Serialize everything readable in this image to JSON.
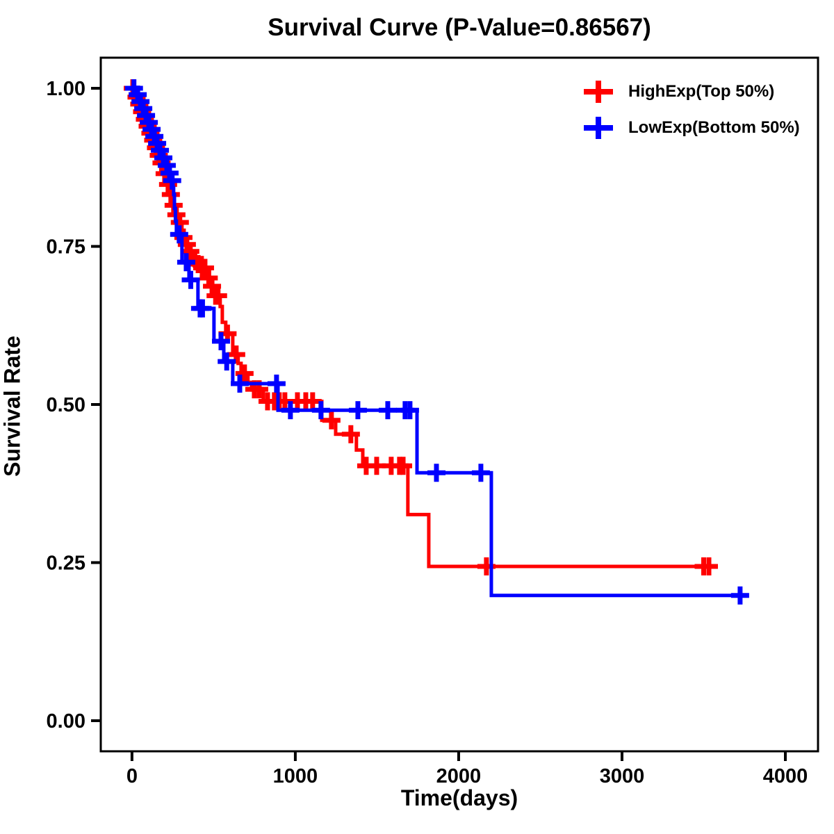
{
  "title": "Survival Curve (P-Value=0.86567)",
  "axes": {
    "x": {
      "label": "Time(days)",
      "ticks": [
        {
          "v": 0,
          "label": "0"
        },
        {
          "v": 1000,
          "label": "1000"
        },
        {
          "v": 2000,
          "label": "2000"
        },
        {
          "v": 3000,
          "label": "3000"
        },
        {
          "v": 4000,
          "label": "4000"
        }
      ]
    },
    "y": {
      "label": "Survival Rate",
      "ticks": [
        {
          "v": 0.0,
          "label": "0.00"
        },
        {
          "v": 0.25,
          "label": "0.25"
        },
        {
          "v": 0.5,
          "label": "0.50"
        },
        {
          "v": 0.75,
          "label": "0.75"
        },
        {
          "v": 1.0,
          "label": "1.00"
        }
      ]
    }
  },
  "legend": [
    {
      "label": "HighExp(Top 50%)",
      "color": "#ff0000",
      "marker": "plus-icon"
    },
    {
      "label": "LowExp(Bottom 50%)",
      "color": "#0000ff",
      "marker": "plus-icon"
    }
  ],
  "chart_data": {
    "type": "line",
    "subtype": "kaplan-meier-step",
    "title": "Survival Curve (P-Value=0.86567)",
    "p_value": 0.86567,
    "xlabel": "Time(days)",
    "ylabel": "Survival Rate",
    "xlim": [
      -191,
      4200
    ],
    "ylim": [
      -0.0484,
      1.0484
    ],
    "grid": false,
    "legend_position": "top-right-inside",
    "series": [
      {
        "name": "HighExp(Top 50%)",
        "color": "#ff0000",
        "end_time": 3560,
        "steps": [
          [
            0,
            1.0
          ],
          [
            21,
            0.986
          ],
          [
            38,
            0.975
          ],
          [
            55,
            0.963
          ],
          [
            72,
            0.951
          ],
          [
            89,
            0.94
          ],
          [
            106,
            0.929
          ],
          [
            123,
            0.918
          ],
          [
            140,
            0.906
          ],
          [
            157,
            0.894
          ],
          [
            174,
            0.882
          ],
          [
            191,
            0.865
          ],
          [
            213,
            0.848
          ],
          [
            230,
            0.832
          ],
          [
            247,
            0.815
          ],
          [
            264,
            0.8
          ],
          [
            281,
            0.788
          ],
          [
            306,
            0.764
          ],
          [
            328,
            0.753
          ],
          [
            349,
            0.742
          ],
          [
            370,
            0.731
          ],
          [
            396,
            0.722
          ],
          [
            417,
            0.716
          ],
          [
            460,
            0.7
          ],
          [
            481,
            0.687
          ],
          [
            502,
            0.672
          ],
          [
            540,
            0.655
          ],
          [
            553,
            0.63
          ],
          [
            574,
            0.612
          ],
          [
            617,
            0.579
          ],
          [
            650,
            0.565
          ],
          [
            668,
            0.549
          ],
          [
            710,
            0.535
          ],
          [
            732,
            0.524
          ],
          [
            804,
            0.505
          ],
          [
            1162,
            0.475
          ],
          [
            1247,
            0.453
          ],
          [
            1374,
            0.428
          ],
          [
            1413,
            0.403
          ],
          [
            1689,
            0.326
          ],
          [
            1817,
            0.244
          ]
        ],
        "censors": [
          [
            5,
            1.0
          ],
          [
            28,
            0.986
          ],
          [
            45,
            0.975
          ],
          [
            62,
            0.963
          ],
          [
            79,
            0.951
          ],
          [
            96,
            0.94
          ],
          [
            113,
            0.929
          ],
          [
            130,
            0.918
          ],
          [
            147,
            0.906
          ],
          [
            164,
            0.894
          ],
          [
            181,
            0.882
          ],
          [
            200,
            0.865
          ],
          [
            221,
            0.848
          ],
          [
            238,
            0.832
          ],
          [
            255,
            0.815
          ],
          [
            272,
            0.8
          ],
          [
            293,
            0.788
          ],
          [
            315,
            0.764
          ],
          [
            336,
            0.753
          ],
          [
            357,
            0.742
          ],
          [
            385,
            0.731
          ],
          [
            405,
            0.722
          ],
          [
            430,
            0.716
          ],
          [
            447,
            0.716
          ],
          [
            470,
            0.7
          ],
          [
            490,
            0.687
          ],
          [
            512,
            0.672
          ],
          [
            527,
            0.672
          ],
          [
            585,
            0.612
          ],
          [
            638,
            0.579
          ],
          [
            689,
            0.549
          ],
          [
            749,
            0.524
          ],
          [
            779,
            0.524
          ],
          [
            830,
            0.505
          ],
          [
            872,
            0.505
          ],
          [
            902,
            0.505
          ],
          [
            936,
            0.505
          ],
          [
            1013,
            0.505
          ],
          [
            1064,
            0.505
          ],
          [
            1106,
            0.505
          ],
          [
            1221,
            0.475
          ],
          [
            1340,
            0.453
          ],
          [
            1434,
            0.403
          ],
          [
            1498,
            0.403
          ],
          [
            1587,
            0.403
          ],
          [
            1638,
            0.403
          ],
          [
            1660,
            0.403
          ],
          [
            2170,
            0.244
          ],
          [
            3500,
            0.244
          ],
          [
            3532,
            0.244
          ]
        ]
      },
      {
        "name": "LowExp(Bottom 50%)",
        "color": "#0000ff",
        "end_time": 3760,
        "steps": [
          [
            0,
            1.0
          ],
          [
            26,
            0.99
          ],
          [
            43,
            0.979
          ],
          [
            60,
            0.968
          ],
          [
            77,
            0.957
          ],
          [
            94,
            0.946
          ],
          [
            111,
            0.935
          ],
          [
            128,
            0.924
          ],
          [
            145,
            0.913
          ],
          [
            162,
            0.902
          ],
          [
            183,
            0.89
          ],
          [
            204,
            0.878
          ],
          [
            221,
            0.866
          ],
          [
            238,
            0.854
          ],
          [
            251,
            0.843
          ],
          [
            255,
            0.832
          ],
          [
            260,
            0.81
          ],
          [
            266,
            0.79
          ],
          [
            272,
            0.769
          ],
          [
            306,
            0.725
          ],
          [
            349,
            0.697
          ],
          [
            404,
            0.652
          ],
          [
            502,
            0.6
          ],
          [
            562,
            0.568
          ],
          [
            617,
            0.533
          ],
          [
            894,
            0.491
          ],
          [
            1745,
            0.392
          ],
          [
            2200,
            0.198
          ]
        ],
        "censors": [
          [
            12,
            1.0
          ],
          [
            35,
            0.99
          ],
          [
            52,
            0.979
          ],
          [
            69,
            0.968
          ],
          [
            86,
            0.957
          ],
          [
            103,
            0.946
          ],
          [
            120,
            0.935
          ],
          [
            137,
            0.924
          ],
          [
            154,
            0.913
          ],
          [
            171,
            0.902
          ],
          [
            192,
            0.89
          ],
          [
            213,
            0.878
          ],
          [
            230,
            0.866
          ],
          [
            246,
            0.854
          ],
          [
            289,
            0.769
          ],
          [
            332,
            0.725
          ],
          [
            360,
            0.697
          ],
          [
            417,
            0.652
          ],
          [
            432,
            0.652
          ],
          [
            545,
            0.6
          ],
          [
            580,
            0.568
          ],
          [
            660,
            0.533
          ],
          [
            885,
            0.533
          ],
          [
            970,
            0.491
          ],
          [
            1157,
            0.491
          ],
          [
            1383,
            0.491
          ],
          [
            1566,
            0.491
          ],
          [
            1672,
            0.491
          ],
          [
            1702,
            0.491
          ],
          [
            1864,
            0.392
          ],
          [
            2136,
            0.392
          ],
          [
            3723,
            0.198
          ]
        ]
      }
    ]
  }
}
